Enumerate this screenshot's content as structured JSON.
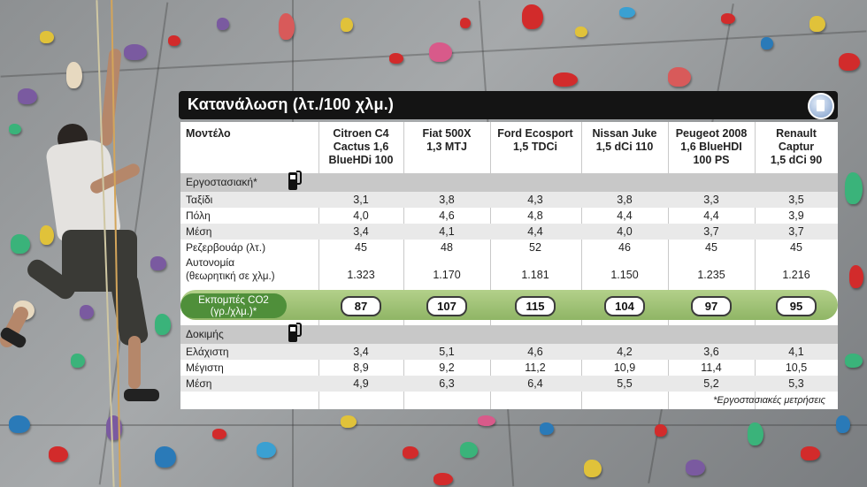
{
  "title": "Κατανάλωση (λτ./100 χλμ.)",
  "icons": {
    "title_badge": "fuel-pump-icon",
    "section_icon": "fuel-pump-icon"
  },
  "colors": {
    "title_bar": "#141414",
    "co2_band": "#a9c97f",
    "co2_label": "#4f8f3a",
    "section": "#c8c8c8"
  },
  "table": {
    "model_header": "Μοντέλο",
    "models": [
      [
        "Citroen C4",
        "Cactus 1,6",
        "BlueHDi 100"
      ],
      [
        "Fiat 500X",
        "1,3 MTJ",
        ""
      ],
      [
        "Ford Ecosport",
        "1,5 TDCi",
        ""
      ],
      [
        "Nissan Juke",
        "1,5 dCi 110",
        ""
      ],
      [
        "Peugeot 2008",
        "1,6 BlueHDI",
        "100 PS"
      ],
      [
        "Renault",
        "Captur",
        "1,5 dCi 90"
      ]
    ],
    "factory": {
      "label": "Εργοστασιακή*",
      "rows": [
        {
          "label": "Ταξίδι",
          "values": [
            "3,1",
            "3,8",
            "4,3",
            "3,8",
            "3,3",
            "3,5"
          ]
        },
        {
          "label": "Πόλη",
          "values": [
            "4,0",
            "4,6",
            "4,8",
            "4,4",
            "4,4",
            "3,9"
          ]
        },
        {
          "label": "Μέση",
          "values": [
            "3,4",
            "4,1",
            "4,4",
            "4,0",
            "3,7",
            "3,7"
          ]
        },
        {
          "label": "Ρεζερβουάρ (λτ.)",
          "values": [
            "45",
            "48",
            "52",
            "46",
            "45",
            "45"
          ]
        }
      ],
      "autonomy_label": [
        "Αυτονομία",
        "(θεωρητική σε χλμ.)"
      ],
      "autonomy_values": [
        "1.323",
        "1.170",
        "1.181",
        "1.150",
        "1.235",
        "1.216"
      ]
    },
    "co2": {
      "label": [
        "Εκπομπές CO2",
        "(γρ./χλμ.)*"
      ],
      "values": [
        "87",
        "107",
        "115",
        "104",
        "97",
        "95"
      ]
    },
    "test": {
      "label": "Δοκιμής",
      "rows": [
        {
          "label": "Ελάχιστη",
          "values": [
            "3,4",
            "5,1",
            "4,6",
            "4,2",
            "3,6",
            "4,1"
          ]
        },
        {
          "label": "Μέγιστη",
          "values": [
            "8,9",
            "9,2",
            "11,2",
            "10,9",
            "11,4",
            "10,5"
          ]
        },
        {
          "label": "Μέση",
          "values": [
            "4,9",
            "6,3",
            "6,4",
            "5,5",
            "5,2",
            "5,3"
          ]
        }
      ]
    },
    "footnote": "*Εργοστασιακές μετρήσεις"
  }
}
